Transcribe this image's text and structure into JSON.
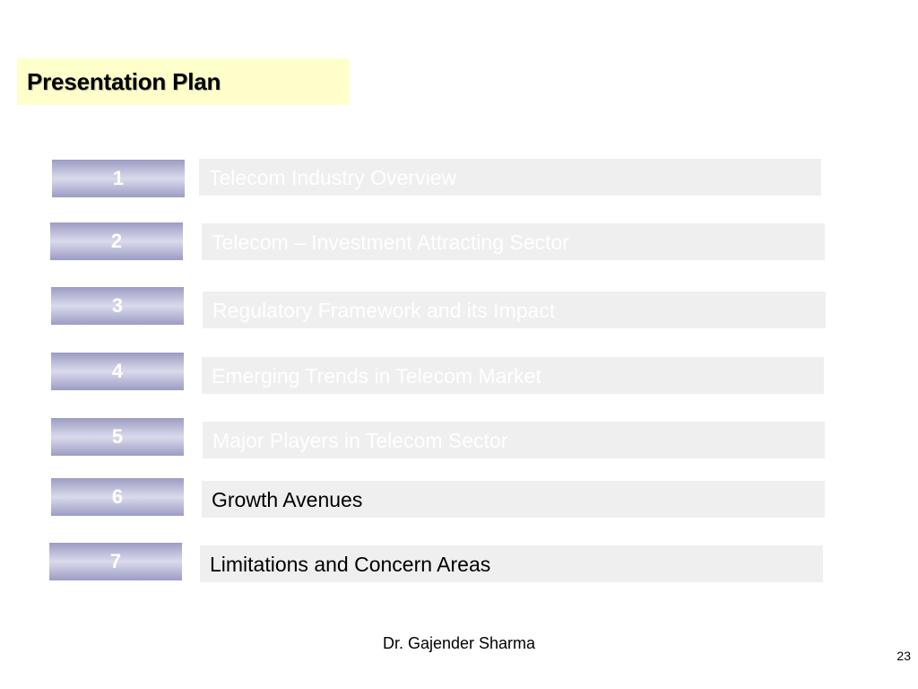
{
  "slide": {
    "title": "Presentation Plan",
    "items": [
      {
        "number": "1",
        "label": "Telecom Industry Overview",
        "state": "faded"
      },
      {
        "number": "2",
        "label": "Telecom – Investment Attracting Sector",
        "state": "faded"
      },
      {
        "number": "3",
        "label": "Regulatory Framework and its Impact",
        "state": "faded"
      },
      {
        "number": "4",
        "label": "Emerging Trends in Telecom Market",
        "state": "faded"
      },
      {
        "number": "5",
        "label": "Major Players in Telecom Sector",
        "state": "faded"
      },
      {
        "number": "6",
        "label": "Growth Avenues",
        "state": "active"
      },
      {
        "number": "7",
        "label": "Limitations and Concern Areas",
        "state": "active"
      }
    ],
    "author": "Dr. Gajender Sharma",
    "page_number": "23"
  },
  "colors": {
    "title_background": "#ffffcc",
    "number_box_dark": "#9c9cc4",
    "number_box_light": "#dadaec",
    "agenda_background": "#efefef",
    "faded_text": "#ffffff",
    "active_text": "#000000"
  }
}
